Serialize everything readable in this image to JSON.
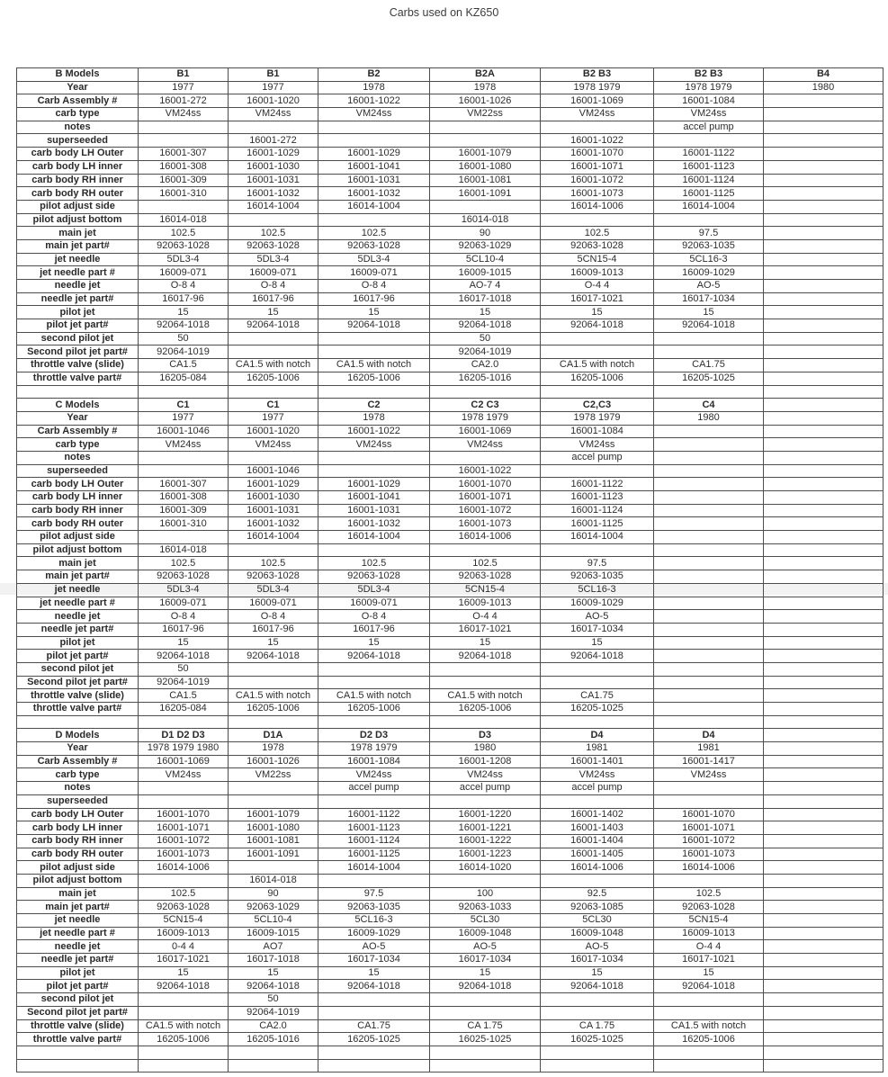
{
  "page": {
    "title": "Carbs used on KZ650"
  },
  "table": {
    "blank_rows_between_sections": 1,
    "blank_rows_at_end": 2,
    "data_columns": 7,
    "sections": [
      {
        "header": "B Models",
        "model_headers": [
          "B1",
          "B1",
          "B2",
          "B2A",
          "B2 B3",
          "B2 B3",
          "B4"
        ],
        "rows": [
          {
            "label": "Year",
            "values": [
              "1977",
              "1977",
              "1978",
              "1978",
              "1978 1979",
              "1978 1979",
              "1980"
            ]
          },
          {
            "label": "Carb Assembly #",
            "values": [
              "16001-272",
              "16001-1020",
              "16001-1022",
              "16001-1026",
              "16001-1069",
              "16001-1084",
              ""
            ]
          },
          {
            "label": "carb type",
            "values": [
              "VM24ss",
              "VM24ss",
              "VM24ss",
              "VM22ss",
              "VM24ss",
              "VM24ss",
              ""
            ]
          },
          {
            "label": "notes",
            "values": [
              "",
              "",
              "",
              "",
              "",
              "accel pump",
              ""
            ]
          },
          {
            "label": "superseeded",
            "values": [
              "",
              "16001-272",
              "",
              "",
              "16001-1022",
              "",
              ""
            ]
          },
          {
            "label": "carb body LH Outer",
            "values": [
              "16001-307",
              "16001-1029",
              "16001-1029",
              "16001-1079",
              "16001-1070",
              "16001-1122",
              ""
            ]
          },
          {
            "label": "carb body LH inner",
            "values": [
              "16001-308",
              "16001-1030",
              "16001-1041",
              "16001-1080",
              "16001-1071",
              "16001-1123",
              ""
            ]
          },
          {
            "label": "carb body RH inner",
            "values": [
              "16001-309",
              "16001-1031",
              "16001-1031",
              "16001-1081",
              "16001-1072",
              "16001-1124",
              ""
            ]
          },
          {
            "label": "carb body RH outer",
            "values": [
              "16001-310",
              "16001-1032",
              "16001-1032",
              "16001-1091",
              "16001-1073",
              "16001-1125",
              ""
            ]
          },
          {
            "label": "pilot adjust side",
            "values": [
              "",
              "16014-1004",
              "16014-1004",
              "",
              "16014-1006",
              "16014-1004",
              ""
            ]
          },
          {
            "label": "pilot adjust bottom",
            "values": [
              "16014-018",
              "",
              "",
              "16014-018",
              "",
              "",
              ""
            ]
          },
          {
            "label": "main jet",
            "values": [
              "102.5",
              "102.5",
              "102.5",
              "90",
              "102.5",
              "97.5",
              ""
            ]
          },
          {
            "label": "main jet part#",
            "values": [
              "92063-1028",
              "92063-1028",
              "92063-1028",
              "92063-1029",
              "92063-1028",
              "92063-1035",
              ""
            ]
          },
          {
            "label": "jet needle",
            "values": [
              "5DL3-4",
              "5DL3-4",
              "5DL3-4",
              "5CL10-4",
              "5CN15-4",
              "5CL16-3",
              ""
            ]
          },
          {
            "label": "jet needle part #",
            "values": [
              "16009-071",
              "16009-071",
              "16009-071",
              "16009-1015",
              "16009-1013",
              "16009-1029",
              ""
            ]
          },
          {
            "label": "needle jet",
            "values": [
              "O-8 4",
              "O-8 4",
              "O-8 4",
              "AO-7 4",
              "O-4 4",
              "AO-5",
              ""
            ]
          },
          {
            "label": "needle jet part#",
            "values": [
              "16017-96",
              "16017-96",
              "16017-96",
              "16017-1018",
              "16017-1021",
              "16017-1034",
              ""
            ]
          },
          {
            "label": "pilot jet",
            "values": [
              "15",
              "15",
              "15",
              "15",
              "15",
              "15",
              ""
            ]
          },
          {
            "label": "pilot jet part#",
            "values": [
              "92064-1018",
              "92064-1018",
              "92064-1018",
              "92064-1018",
              "92064-1018",
              "92064-1018",
              ""
            ]
          },
          {
            "label": "second pilot jet",
            "values": [
              "50",
              "",
              "",
              "50",
              "",
              "",
              ""
            ]
          },
          {
            "label": "Second pilot jet part#",
            "values": [
              "92064-1019",
              "",
              "",
              "92064-1019",
              "",
              "",
              ""
            ]
          },
          {
            "label": "throttle valve (slide)",
            "values": [
              "CA1.5",
              "CA1.5 with notch",
              "CA1.5 with notch",
              "CA2.0",
              "CA1.5 with notch",
              "CA1.75",
              ""
            ]
          },
          {
            "label": "throttle valve part#",
            "values": [
              "16205-084",
              "16205-1006",
              "16205-1006",
              "16205-1016",
              "16205-1006",
              "16205-1025",
              ""
            ]
          }
        ]
      },
      {
        "header": "C Models",
        "model_headers": [
          "C1",
          "C1",
          "C2",
          "C2 C3",
          "C2,C3",
          "C4",
          ""
        ],
        "rows": [
          {
            "label": "Year",
            "values": [
              "1977",
              "1977",
              "1978",
              "1978 1979",
              "1978 1979",
              "1980",
              ""
            ]
          },
          {
            "label": "Carb Assembly #",
            "values": [
              "16001-1046",
              "16001-1020",
              "16001-1022",
              "16001-1069",
              "16001-1084",
              "",
              ""
            ]
          },
          {
            "label": "carb type",
            "values": [
              "VM24ss",
              "VM24ss",
              "VM24ss",
              "VM24ss",
              "VM24ss",
              "",
              ""
            ]
          },
          {
            "label": "notes",
            "values": [
              "",
              "",
              "",
              "",
              "accel pump",
              "",
              ""
            ]
          },
          {
            "label": "superseeded",
            "values": [
              "",
              "16001-1046",
              "",
              "16001-1022",
              "",
              "",
              ""
            ]
          },
          {
            "label": "carb body LH Outer",
            "values": [
              "16001-307",
              "16001-1029",
              "16001-1029",
              "16001-1070",
              "16001-1122",
              "",
              ""
            ]
          },
          {
            "label": "carb body LH inner",
            "values": [
              "16001-308",
              "16001-1030",
              "16001-1041",
              "16001-1071",
              "16001-1123",
              "",
              ""
            ]
          },
          {
            "label": "carb body RH inner",
            "values": [
              "16001-309",
              "16001-1031",
              "16001-1031",
              "16001-1072",
              "16001-1124",
              "",
              ""
            ]
          },
          {
            "label": "carb body RH outer",
            "values": [
              "16001-310",
              "16001-1032",
              "16001-1032",
              "16001-1073",
              "16001-1125",
              "",
              ""
            ]
          },
          {
            "label": "pilot adjust side",
            "values": [
              "",
              "16014-1004",
              "16014-1004",
              "16014-1006",
              "16014-1004",
              "",
              ""
            ]
          },
          {
            "label": "pilot adjust bottom",
            "values": [
              "16014-018",
              "",
              "",
              "",
              "",
              "",
              ""
            ]
          },
          {
            "label": "main jet",
            "values": [
              "102.5",
              "102.5",
              "102.5",
              "102.5",
              "97.5",
              "",
              ""
            ]
          },
          {
            "label": "main jet part#",
            "values": [
              "92063-1028",
              "92063-1028",
              "92063-1028",
              "92063-1028",
              "92063-1035",
              "",
              ""
            ]
          },
          {
            "label": "jet needle",
            "values": [
              "5DL3-4",
              "5DL3-4",
              "5DL3-4",
              "5CN15-4",
              "5CL16-3",
              "",
              ""
            ]
          },
          {
            "label": "jet needle part #",
            "values": [
              "16009-071",
              "16009-071",
              "16009-071",
              "16009-1013",
              "16009-1029",
              "",
              ""
            ]
          },
          {
            "label": "needle jet",
            "values": [
              "O-8 4",
              "O-8 4",
              "O-8 4",
              "O-4 4",
              "AO-5",
              "",
              ""
            ]
          },
          {
            "label": "needle jet part#",
            "values": [
              "16017-96",
              "16017-96",
              "16017-96",
              "16017-1021",
              "16017-1034",
              "",
              ""
            ]
          },
          {
            "label": "pilot jet",
            "values": [
              "15",
              "15",
              "15",
              "15",
              "15",
              "",
              ""
            ]
          },
          {
            "label": "pilot jet part#",
            "values": [
              "92064-1018",
              "92064-1018",
              "92064-1018",
              "92064-1018",
              "92064-1018",
              "",
              ""
            ]
          },
          {
            "label": "second pilot jet",
            "values": [
              "50",
              "",
              "",
              "",
              "",
              "",
              ""
            ]
          },
          {
            "label": "Second pilot jet part#",
            "values": [
              "92064-1019",
              "",
              "",
              "",
              "",
              "",
              ""
            ]
          },
          {
            "label": "throttle valve (slide)",
            "values": [
              "CA1.5",
              "CA1.5 with notch",
              "CA1.5 with notch",
              "CA1.5 with notch",
              "CA1.75",
              "",
              ""
            ]
          },
          {
            "label": "throttle valve part#",
            "values": [
              "16205-084",
              "16205-1006",
              "16205-1006",
              "16205-1006",
              "16205-1025",
              "",
              ""
            ]
          }
        ]
      },
      {
        "header": "D Models",
        "model_headers": [
          "D1 D2 D3",
          "D1A",
          "D2 D3",
          "D3",
          "D4",
          "D4",
          ""
        ],
        "rows": [
          {
            "label": "Year",
            "values": [
              "1978 1979 1980",
              "1978",
              "1978 1979",
              "1980",
              "1981",
              "1981",
              ""
            ]
          },
          {
            "label": "Carb Assembly #",
            "values": [
              "16001-1069",
              "16001-1026",
              "16001-1084",
              "16001-1208",
              "16001-1401",
              "16001-1417",
              ""
            ]
          },
          {
            "label": "carb type",
            "values": [
              "VM24ss",
              "VM22ss",
              "VM24ss",
              "VM24ss",
              "VM24ss",
              "VM24ss",
              ""
            ]
          },
          {
            "label": "notes",
            "values": [
              "",
              "",
              "accel pump",
              "accel pump",
              "accel pump",
              "",
              ""
            ]
          },
          {
            "label": "superseeded",
            "values": [
              "",
              "",
              "",
              "",
              "",
              "",
              ""
            ]
          },
          {
            "label": "carb body LH Outer",
            "values": [
              "16001-1070",
              "16001-1079",
              "16001-1122",
              "16001-1220",
              "16001-1402",
              "16001-1070",
              ""
            ]
          },
          {
            "label": "carb body LH inner",
            "values": [
              "16001-1071",
              "16001-1080",
              "16001-1123",
              "16001-1221",
              "16001-1403",
              "16001-1071",
              ""
            ]
          },
          {
            "label": "carb body RH inner",
            "values": [
              "16001-1072",
              "16001-1081",
              "16001-1124",
              "16001-1222",
              "16001-1404",
              "16001-1072",
              ""
            ]
          },
          {
            "label": "carb body RH outer",
            "values": [
              "16001-1073",
              "16001-1091",
              "16001-1125",
              "16001-1223",
              "16001-1405",
              "16001-1073",
              ""
            ]
          },
          {
            "label": "pilot adjust side",
            "values": [
              "16014-1006",
              "",
              "16014-1004",
              "16014-1020",
              "16014-1006",
              "16014-1006",
              ""
            ]
          },
          {
            "label": "pilot adjust bottom",
            "values": [
              "",
              "16014-018",
              "",
              "",
              "",
              "",
              ""
            ]
          },
          {
            "label": "main jet",
            "values": [
              "102.5",
              "90",
              "97.5",
              "100",
              "92.5",
              "102.5",
              ""
            ]
          },
          {
            "label": "main jet part#",
            "values": [
              "92063-1028",
              "92063-1029",
              "92063-1035",
              "92063-1033",
              "92063-1085",
              "92063-1028",
              ""
            ]
          },
          {
            "label": "jet needle",
            "values": [
              "5CN15-4",
              "5CL10-4",
              "5CL16-3",
              "5CL30",
              "5CL30",
              "5CN15-4",
              ""
            ]
          },
          {
            "label": "jet needle part #",
            "values": [
              "16009-1013",
              "16009-1015",
              "16009-1029",
              "16009-1048",
              "16009-1048",
              "16009-1013",
              ""
            ]
          },
          {
            "label": "needle jet",
            "values": [
              "0-4 4",
              "AO7",
              "AO-5",
              "AO-5",
              "AO-5",
              "O-4 4",
              ""
            ]
          },
          {
            "label": "needle jet part#",
            "values": [
              "16017-1021",
              "16017-1018",
              "16017-1034",
              "16017-1034",
              "16017-1034",
              "16017-1021",
              ""
            ]
          },
          {
            "label": "pilot jet",
            "values": [
              "15",
              "15",
              "15",
              "15",
              "15",
              "15",
              ""
            ]
          },
          {
            "label": "pilot jet part#",
            "values": [
              "92064-1018",
              "92064-1018",
              "92064-1018",
              "92064-1018",
              "92064-1018",
              "92064-1018",
              ""
            ]
          },
          {
            "label": "second pilot jet",
            "values": [
              "",
              "50",
              "",
              "",
              "",
              "",
              ""
            ]
          },
          {
            "label": "Second pilot jet part#",
            "values": [
              "",
              "92064-1019",
              "",
              "",
              "",
              "",
              ""
            ]
          },
          {
            "label": "throttle valve (slide)",
            "values": [
              "CA1.5 with notch",
              "CA2.0",
              "CA1.75",
              "CA 1.75",
              "CA 1.75",
              "CA1.5 with notch",
              ""
            ]
          },
          {
            "label": "throttle valve part#",
            "values": [
              "16205-1006",
              "16205-1016",
              "16205-1025",
              "16025-1025",
              "16025-1025",
              "16205-1006",
              ""
            ]
          }
        ]
      }
    ]
  }
}
